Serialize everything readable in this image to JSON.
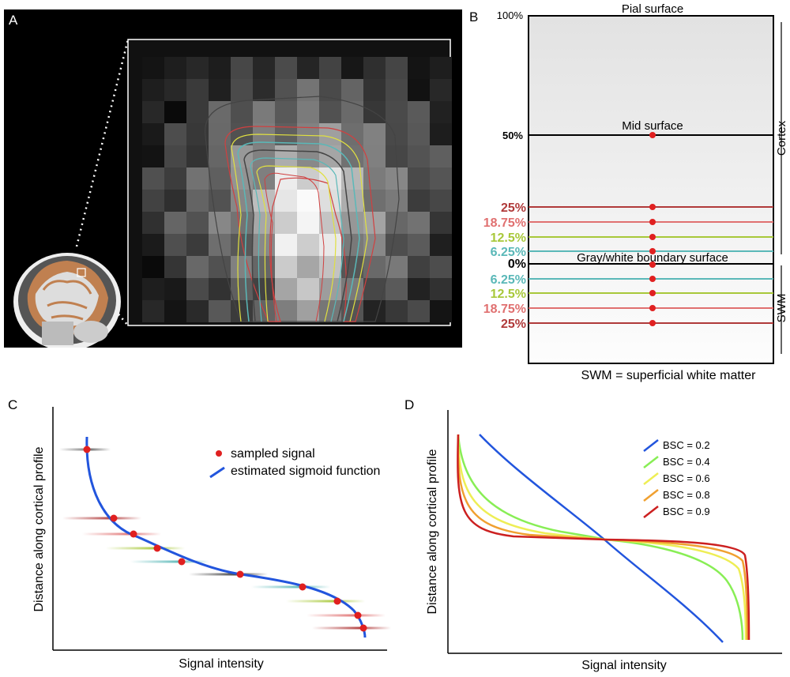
{
  "panels": {
    "a": "A",
    "b": "B",
    "c": "C",
    "d": "D"
  },
  "panelB": {
    "top_percent": "100%",
    "pial": "Pial surface",
    "mid_percent": "50%",
    "mid": "Mid surface",
    "gw": "Gray/white boundary surface",
    "zero_percent": "0%",
    "cortex": "Cortex",
    "swm": "SWM",
    "swm_note": "SWM = superficial white matter",
    "upper_levels": [
      "25%",
      "18.75%",
      "12.5%",
      "6.25%"
    ],
    "lower_levels": [
      "6.25%",
      "12.5%",
      "18.75%",
      "25%"
    ],
    "level_colors": [
      "#b03a3a",
      "#e07070",
      "#a8c83a",
      "#5ab8b8"
    ]
  },
  "panelC": {
    "ylabel": "Distance along cortical profile",
    "xlabel": "Signal intensity",
    "legend_sampled": "sampled signal",
    "legend_sigmoid": "estimated sigmoid function"
  },
  "panelD": {
    "ylabel": "Distance along cortical profile",
    "xlabel": "Signal intensity",
    "legend": [
      {
        "label": "BSC = 0.2",
        "color": "#2255dd"
      },
      {
        "label": "BSC = 0.4",
        "color": "#88ee55"
      },
      {
        "label": "BSC = 0.6",
        "color": "#eeee55"
      },
      {
        "label": "BSC = 0.8",
        "color": "#f0a030"
      },
      {
        "label": "BSC = 0.9",
        "color": "#cc2020"
      }
    ]
  }
}
